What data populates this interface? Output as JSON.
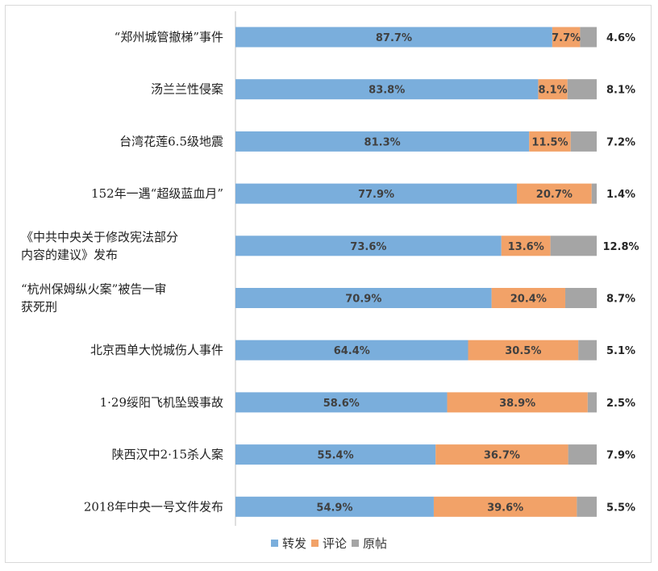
{
  "chart_data": {
    "type": "bar",
    "orientation": "horizontal",
    "stacked": true,
    "percent_stacked": true,
    "categories": [
      "“郑州城管撤梯”事件",
      "汤兰兰性侵案",
      "台湾花莲6.5级地震",
      "152年一遇“超级蓝血月”",
      "《中共中央关于修改宪法部分内容的建议》发布",
      "“杭州保姆纵火案”被告一审获死刑",
      "北京西单大悦城伤人事件",
      "1·29绥阳飞机坠毁事故",
      "陕西汉中2·15杀人案",
      "2018年中央一号文件发布"
    ],
    "category_lines": [
      [
        "“郑州城管撤梯”事件"
      ],
      [
        "汤兰兰性侵案"
      ],
      [
        "台湾花莲6.5级地震"
      ],
      [
        "152年一遇“超级蓝血月”"
      ],
      [
        "《中共中央关于修改宪法部分",
        "内容的建议》发布"
      ],
      [
        "“杭州保姆纵火案”被告一审",
        "获死刑"
      ],
      [
        "北京西单大悦城伤人事件"
      ],
      [
        "1·29绥阳飞机坠毁事故"
      ],
      [
        "陕西汉中2·15杀人案"
      ],
      [
        "2018年中央一号文件发布"
      ]
    ],
    "series": [
      {
        "name": "转发",
        "color": "#7aaedc",
        "values": [
          87.7,
          83.8,
          81.3,
          77.9,
          73.6,
          70.9,
          64.4,
          58.6,
          55.4,
          54.9
        ],
        "labels": [
          "87.7%",
          "83.8%",
          "81.3%",
          "77.9%",
          "73.6%",
          "70.9%",
          "64.4%",
          "58.6%",
          "55.4%",
          "54.9%"
        ]
      },
      {
        "name": "评论",
        "color": "#f2a268",
        "values": [
          7.7,
          8.1,
          11.5,
          20.7,
          13.6,
          20.4,
          30.5,
          38.9,
          36.7,
          39.6
        ],
        "labels": [
          "7.7%",
          "8.1%",
          "11.5%",
          "20.7%",
          "13.6%",
          "20.4%",
          "30.5%",
          "38.9%",
          "36.7%",
          "39.6%"
        ]
      },
      {
        "name": "原帖",
        "color": "#a5a5a5",
        "values": [
          4.6,
          8.1,
          7.2,
          1.4,
          12.8,
          8.7,
          5.1,
          2.5,
          7.9,
          5.5
        ],
        "labels": [
          "4.6%",
          "8.1%",
          "7.2%",
          "1.4%",
          "12.8%",
          "8.7%",
          "5.1%",
          "2.5%",
          "7.9%",
          "5.5%"
        ]
      }
    ],
    "xlim": [
      0,
      100
    ],
    "grid": false,
    "legend_position": "bottom"
  }
}
